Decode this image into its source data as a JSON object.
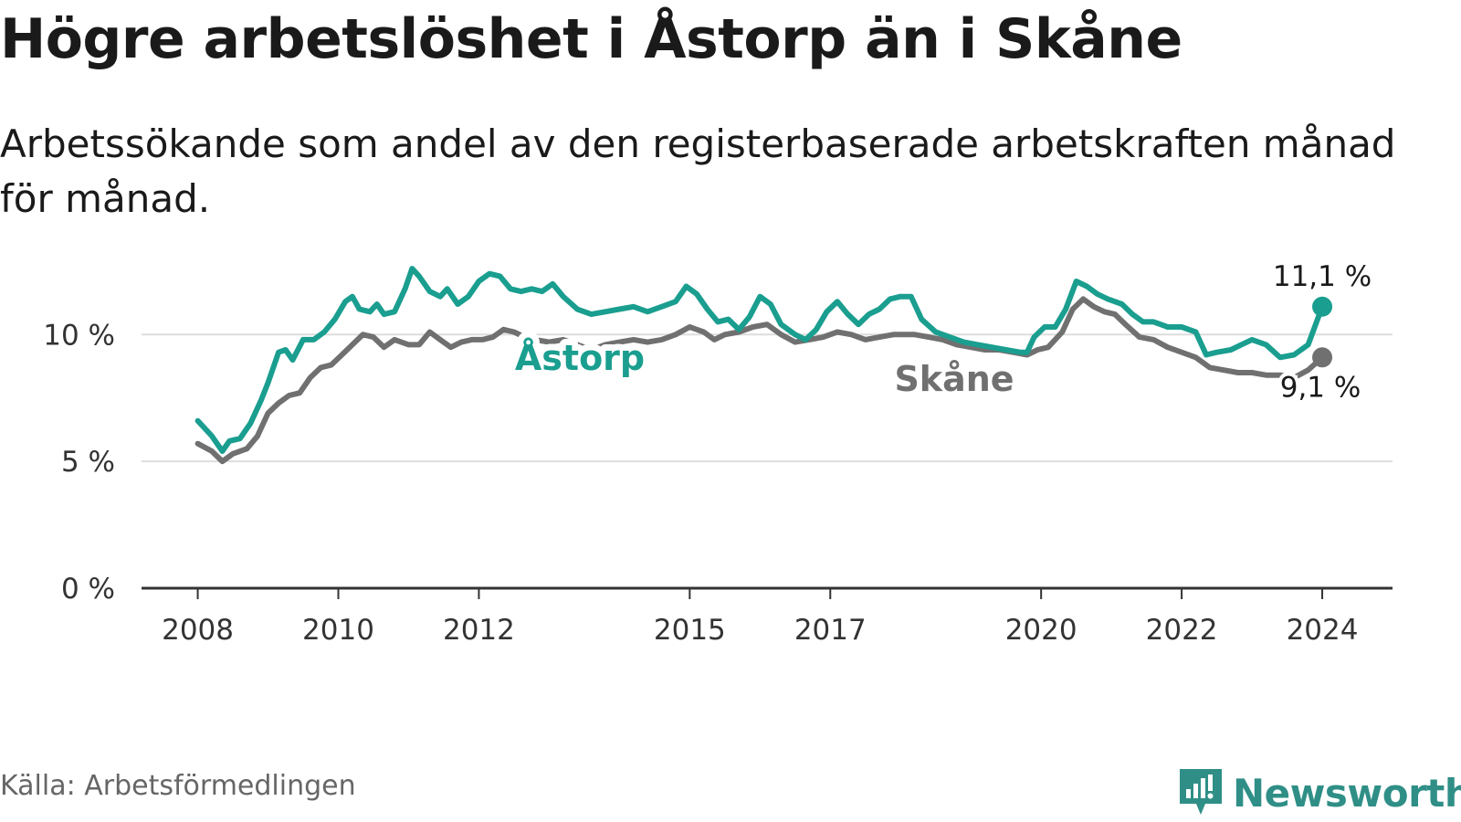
{
  "title": "Högre arbetslöshet i Åstorp än i Skåne",
  "subtitle": "Arbetssökande som andel av den registerbaserade arbetskraften månad för månad.",
  "source": "Källa: Arbetsförmedlingen",
  "brand": "Newsworthy",
  "colors": {
    "astorp": "#1a9e8f",
    "skane": "#707070",
    "grid": "#dddddd",
    "axis": "#333333",
    "brand": "#2f8f87"
  },
  "chart_data": {
    "type": "line",
    "x_range": [
      2007.2,
      2025.0
    ],
    "y_range": [
      0,
      13
    ],
    "yticks": [
      {
        "value": 0,
        "label": "0 %"
      },
      {
        "value": 5,
        "label": "5 %"
      },
      {
        "value": 10,
        "label": "10 %"
      }
    ],
    "xticks": [
      {
        "value": 2008,
        "label": "2008"
      },
      {
        "value": 2010,
        "label": "2010"
      },
      {
        "value": 2012,
        "label": "2012"
      },
      {
        "value": 2015,
        "label": "2015"
      },
      {
        "value": 2017,
        "label": "2017"
      },
      {
        "value": 2020,
        "label": "2020"
      },
      {
        "value": 2022,
        "label": "2022"
      },
      {
        "value": 2024,
        "label": "2024"
      }
    ],
    "series": [
      {
        "name": "Skåne",
        "label": "Skåne",
        "end_label": "9,1 %",
        "points": [
          [
            2008.0,
            5.7
          ],
          [
            2008.2,
            5.4
          ],
          [
            2008.35,
            5.0
          ],
          [
            2008.5,
            5.3
          ],
          [
            2008.7,
            5.5
          ],
          [
            2008.85,
            6.0
          ],
          [
            2009.0,
            6.9
          ],
          [
            2009.15,
            7.3
          ],
          [
            2009.3,
            7.6
          ],
          [
            2009.45,
            7.7
          ],
          [
            2009.6,
            8.3
          ],
          [
            2009.75,
            8.7
          ],
          [
            2009.9,
            8.8
          ],
          [
            2010.05,
            9.2
          ],
          [
            2010.2,
            9.6
          ],
          [
            2010.35,
            10.0
          ],
          [
            2010.5,
            9.9
          ],
          [
            2010.65,
            9.5
          ],
          [
            2010.8,
            9.8
          ],
          [
            2011.0,
            9.6
          ],
          [
            2011.15,
            9.6
          ],
          [
            2011.3,
            10.1
          ],
          [
            2011.45,
            9.8
          ],
          [
            2011.6,
            9.5
          ],
          [
            2011.75,
            9.7
          ],
          [
            2011.9,
            9.8
          ],
          [
            2012.05,
            9.8
          ],
          [
            2012.2,
            9.9
          ],
          [
            2012.35,
            10.2
          ],
          [
            2012.5,
            10.1
          ],
          [
            2012.65,
            9.9
          ],
          [
            2012.8,
            9.8
          ],
          [
            2013.0,
            9.7
          ],
          [
            2013.2,
            9.8
          ],
          [
            2013.4,
            9.6
          ],
          [
            2013.6,
            9.4
          ],
          [
            2013.8,
            9.6
          ],
          [
            2014.0,
            9.7
          ],
          [
            2014.2,
            9.8
          ],
          [
            2014.4,
            9.7
          ],
          [
            2014.6,
            9.8
          ],
          [
            2014.8,
            10.0
          ],
          [
            2015.0,
            10.3
          ],
          [
            2015.2,
            10.1
          ],
          [
            2015.35,
            9.8
          ],
          [
            2015.5,
            10.0
          ],
          [
            2015.7,
            10.1
          ],
          [
            2015.9,
            10.3
          ],
          [
            2016.1,
            10.4
          ],
          [
            2016.3,
            10.0
          ],
          [
            2016.5,
            9.7
          ],
          [
            2016.7,
            9.8
          ],
          [
            2016.9,
            9.9
          ],
          [
            2017.1,
            10.1
          ],
          [
            2017.3,
            10.0
          ],
          [
            2017.5,
            9.8
          ],
          [
            2017.7,
            9.9
          ],
          [
            2017.9,
            10.0
          ],
          [
            2018.2,
            10.0
          ],
          [
            2018.4,
            9.9
          ],
          [
            2018.6,
            9.8
          ],
          [
            2018.8,
            9.6
          ],
          [
            2019.0,
            9.5
          ],
          [
            2019.2,
            9.4
          ],
          [
            2019.4,
            9.4
          ],
          [
            2019.6,
            9.3
          ],
          [
            2019.8,
            9.2
          ],
          [
            2019.95,
            9.4
          ],
          [
            2020.1,
            9.5
          ],
          [
            2020.3,
            10.1
          ],
          [
            2020.45,
            11.0
          ],
          [
            2020.6,
            11.4
          ],
          [
            2020.75,
            11.1
          ],
          [
            2020.9,
            10.9
          ],
          [
            2021.05,
            10.8
          ],
          [
            2021.2,
            10.4
          ],
          [
            2021.4,
            9.9
          ],
          [
            2021.6,
            9.8
          ],
          [
            2021.8,
            9.5
          ],
          [
            2022.0,
            9.3
          ],
          [
            2022.2,
            9.1
          ],
          [
            2022.4,
            8.7
          ],
          [
            2022.6,
            8.6
          ],
          [
            2022.8,
            8.5
          ],
          [
            2023.0,
            8.5
          ],
          [
            2023.2,
            8.4
          ],
          [
            2023.4,
            8.4
          ],
          [
            2023.6,
            8.3
          ],
          [
            2023.8,
            8.6
          ],
          [
            2024.0,
            9.1
          ]
        ]
      },
      {
        "name": "Åstorp",
        "label": "Åstorp",
        "end_label": "11,1 %",
        "points": [
          [
            2008.0,
            6.6
          ],
          [
            2008.2,
            6.0
          ],
          [
            2008.35,
            5.4
          ],
          [
            2008.45,
            5.8
          ],
          [
            2008.6,
            5.9
          ],
          [
            2008.75,
            6.5
          ],
          [
            2008.9,
            7.4
          ],
          [
            2009.0,
            8.1
          ],
          [
            2009.15,
            9.3
          ],
          [
            2009.25,
            9.4
          ],
          [
            2009.35,
            9.0
          ],
          [
            2009.5,
            9.8
          ],
          [
            2009.65,
            9.8
          ],
          [
            2009.8,
            10.1
          ],
          [
            2009.95,
            10.6
          ],
          [
            2010.1,
            11.3
          ],
          [
            2010.2,
            11.5
          ],
          [
            2010.3,
            11.0
          ],
          [
            2010.45,
            10.9
          ],
          [
            2010.55,
            11.2
          ],
          [
            2010.65,
            10.8
          ],
          [
            2010.8,
            10.9
          ],
          [
            2010.95,
            11.8
          ],
          [
            2011.05,
            12.6
          ],
          [
            2011.15,
            12.3
          ],
          [
            2011.3,
            11.7
          ],
          [
            2011.45,
            11.5
          ],
          [
            2011.55,
            11.8
          ],
          [
            2011.7,
            11.2
          ],
          [
            2011.85,
            11.5
          ],
          [
            2012.0,
            12.1
          ],
          [
            2012.15,
            12.4
          ],
          [
            2012.3,
            12.3
          ],
          [
            2012.45,
            11.8
          ],
          [
            2012.6,
            11.7
          ],
          [
            2012.75,
            11.8
          ],
          [
            2012.9,
            11.7
          ],
          [
            2013.05,
            12.0
          ],
          [
            2013.2,
            11.5
          ],
          [
            2013.4,
            11.0
          ],
          [
            2013.6,
            10.8
          ],
          [
            2013.8,
            10.9
          ],
          [
            2014.0,
            11.0
          ],
          [
            2014.2,
            11.1
          ],
          [
            2014.4,
            10.9
          ],
          [
            2014.6,
            11.1
          ],
          [
            2014.8,
            11.3
          ],
          [
            2014.95,
            11.9
          ],
          [
            2015.1,
            11.6
          ],
          [
            2015.25,
            11.0
          ],
          [
            2015.4,
            10.5
          ],
          [
            2015.55,
            10.6
          ],
          [
            2015.7,
            10.2
          ],
          [
            2015.85,
            10.7
          ],
          [
            2016.0,
            11.5
          ],
          [
            2016.15,
            11.2
          ],
          [
            2016.3,
            10.4
          ],
          [
            2016.5,
            10.0
          ],
          [
            2016.65,
            9.8
          ],
          [
            2016.8,
            10.2
          ],
          [
            2016.95,
            10.9
          ],
          [
            2017.1,
            11.3
          ],
          [
            2017.25,
            10.8
          ],
          [
            2017.4,
            10.4
          ],
          [
            2017.55,
            10.8
          ],
          [
            2017.7,
            11.0
          ],
          [
            2017.85,
            11.4
          ],
          [
            2018.0,
            11.5
          ],
          [
            2018.15,
            11.5
          ],
          [
            2018.3,
            10.6
          ],
          [
            2018.5,
            10.1
          ],
          [
            2018.7,
            9.9
          ],
          [
            2018.9,
            9.7
          ],
          [
            2019.1,
            9.6
          ],
          [
            2019.3,
            9.5
          ],
          [
            2019.5,
            9.4
          ],
          [
            2019.7,
            9.3
          ],
          [
            2019.8,
            9.3
          ],
          [
            2019.9,
            9.9
          ],
          [
            2020.05,
            10.3
          ],
          [
            2020.2,
            10.3
          ],
          [
            2020.35,
            11.0
          ],
          [
            2020.5,
            12.1
          ],
          [
            2020.65,
            11.9
          ],
          [
            2020.8,
            11.6
          ],
          [
            2020.95,
            11.4
          ],
          [
            2021.15,
            11.2
          ],
          [
            2021.3,
            10.8
          ],
          [
            2021.45,
            10.5
          ],
          [
            2021.6,
            10.5
          ],
          [
            2021.8,
            10.3
          ],
          [
            2022.0,
            10.3
          ],
          [
            2022.2,
            10.1
          ],
          [
            2022.35,
            9.2
          ],
          [
            2022.5,
            9.3
          ],
          [
            2022.7,
            9.4
          ],
          [
            2022.85,
            9.6
          ],
          [
            2023.0,
            9.8
          ],
          [
            2023.2,
            9.6
          ],
          [
            2023.4,
            9.1
          ],
          [
            2023.6,
            9.2
          ],
          [
            2023.8,
            9.6
          ],
          [
            2024.0,
            11.1
          ]
        ]
      }
    ]
  }
}
